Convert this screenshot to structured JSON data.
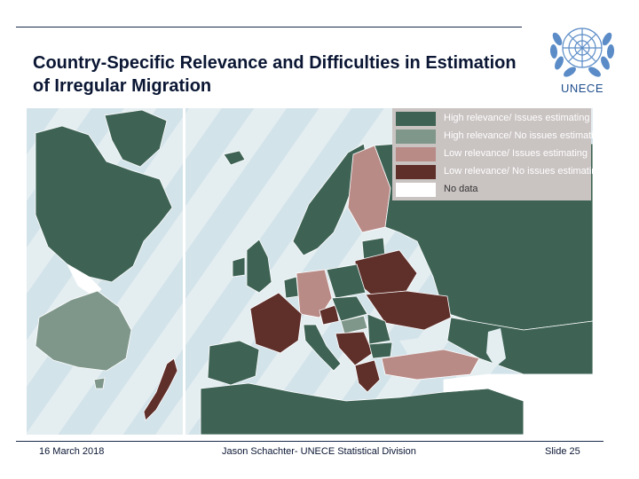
{
  "slide": {
    "title": "Country-Specific Relevance and Difficulties in Estimation of Irregular Migration",
    "logo_text": "UNECE"
  },
  "legend": {
    "items": [
      {
        "label": "High relevance/ Issues estimating",
        "color": "#3e6355"
      },
      {
        "label": "High relevance/ No issues estimating",
        "color": "#7f978b"
      },
      {
        "label": "Low relevance/ Issues estimating",
        "color": "#b98b87"
      },
      {
        "label": "Low relevance/ No issues estimating",
        "color": "#5f2f2a"
      },
      {
        "label": "No data",
        "color": "#ffffff"
      }
    ]
  },
  "colors": {
    "sea": "#e4eef1",
    "stripe": "#d3e3ea",
    "high_issues": "#3e6355",
    "high_no_issues": "#7f978b",
    "low_issues": "#b98b87",
    "low_no_issues": "#5f2f2a",
    "no_data": "#ffffff"
  },
  "footer": {
    "date": "16 March 2018",
    "author": "Jason Schachter- UNECE Statistical Division",
    "slide_number": "Slide 25"
  }
}
